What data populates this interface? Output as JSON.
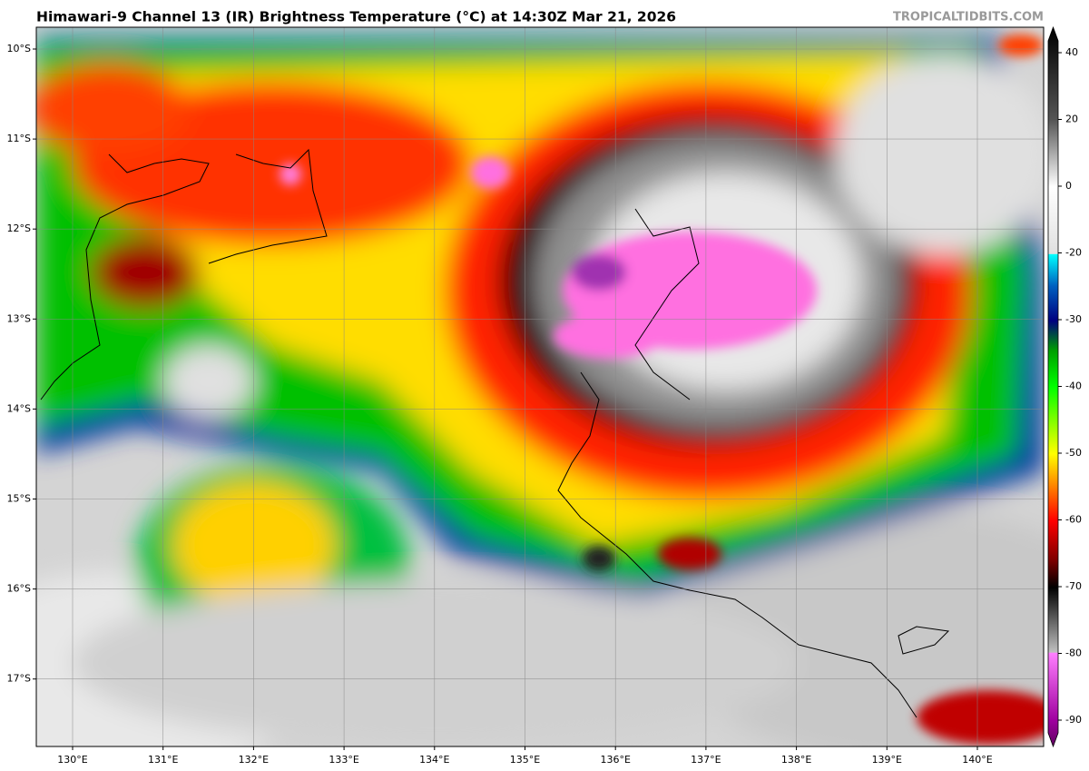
{
  "title": "Himawari-9 Channel 13 (IR) Brightness Temperature (°C) at 14:30Z Mar 21, 2026",
  "watermark": "TROPICALTIDBITS.COM",
  "map": {
    "lat_labels": [
      "10°S",
      "11°S",
      "12°S",
      "13°S",
      "14°S",
      "15°S",
      "16°S",
      "17°S"
    ],
    "lon_labels": [
      "130°E",
      "131°E",
      "132°E",
      "133°E",
      "134°E",
      "135°E",
      "136°E",
      "137°E",
      "138°E",
      "139°E",
      "140°E"
    ]
  },
  "colorbar": {
    "ticks": [
      40,
      20,
      0,
      -20,
      -30,
      -40,
      -50,
      -60,
      -70,
      -80,
      -90
    ]
  }
}
